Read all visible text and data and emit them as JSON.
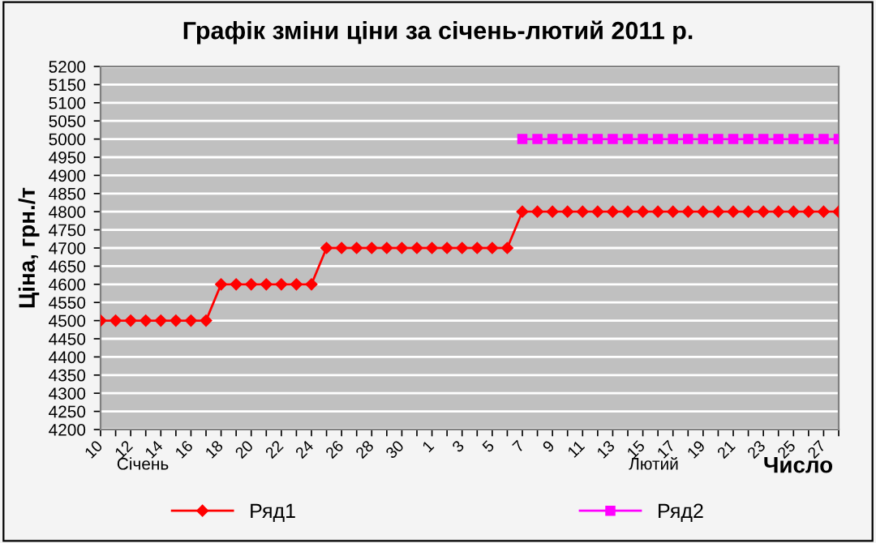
{
  "chart_data": {
    "type": "line",
    "title": "Графік зміни ціни за січень-лютий 2011 р.",
    "xlabel": "Число",
    "ylabel": "Ціна, грн./т",
    "categories": [
      "10",
      null,
      "12",
      null,
      "14",
      null,
      "16",
      null,
      "18",
      null,
      "20",
      null,
      "22",
      null,
      "24",
      null,
      "26",
      null,
      "28",
      null,
      "30",
      null,
      "1",
      null,
      "3",
      null,
      "5",
      null,
      "7",
      null,
      "9",
      null,
      "11",
      null,
      "13",
      null,
      "15",
      null,
      "17",
      null,
      "19",
      null,
      "21",
      null,
      "23",
      null,
      "25",
      null,
      "27",
      null
    ],
    "series": [
      {
        "name": "Ряд1",
        "color": "#ff0000",
        "marker": "diamond",
        "values": [
          4500,
          4500,
          4500,
          4500,
          4500,
          4500,
          4500,
          4500,
          4600,
          4600,
          4600,
          4600,
          4600,
          4600,
          4600,
          4700,
          4700,
          4700,
          4700,
          4700,
          4700,
          4700,
          4700,
          4700,
          4700,
          4700,
          4700,
          4700,
          4800,
          4800,
          4800,
          4800,
          4800,
          4800,
          4800,
          4800,
          4800,
          4800,
          4800,
          4800,
          4800,
          4800,
          4800,
          4800,
          4800,
          4800,
          4800,
          4800,
          4800,
          4800
        ]
      },
      {
        "name": "Ряд2",
        "color": "#ff00ff",
        "marker": "square",
        "values": [
          null,
          null,
          null,
          null,
          null,
          null,
          null,
          null,
          null,
          null,
          null,
          null,
          null,
          null,
          null,
          null,
          null,
          null,
          null,
          null,
          null,
          null,
          null,
          null,
          null,
          null,
          null,
          null,
          5000,
          5000,
          5000,
          5000,
          5000,
          5000,
          5000,
          5000,
          5000,
          5000,
          5000,
          5000,
          5000,
          5000,
          5000,
          5000,
          5000,
          5000,
          5000,
          5000,
          5000,
          5000
        ]
      }
    ],
    "ylim": [
      4200,
      5200
    ],
    "yticks": [
      4200,
      4250,
      4300,
      4350,
      4400,
      4450,
      4500,
      4550,
      4600,
      4650,
      4700,
      4750,
      4800,
      4850,
      4900,
      4950,
      5000,
      5050,
      5100,
      5150,
      5200
    ],
    "grid": "y",
    "legend": "bottom",
    "line_style": "solid",
    "annotations": [
      "Січень",
      "Лютий"
    ]
  }
}
